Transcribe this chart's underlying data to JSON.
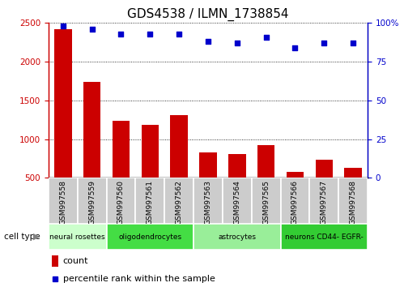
{
  "title": "GDS4538 / ILMN_1738854",
  "samples": [
    "GSM997558",
    "GSM997559",
    "GSM997560",
    "GSM997561",
    "GSM997562",
    "GSM997563",
    "GSM997564",
    "GSM997565",
    "GSM997566",
    "GSM997567",
    "GSM997568"
  ],
  "counts": [
    2420,
    1740,
    1240,
    1190,
    1310,
    830,
    810,
    920,
    580,
    730,
    630
  ],
  "percentile": [
    98,
    96,
    93,
    93,
    93,
    88,
    87,
    91,
    84,
    87,
    87
  ],
  "ylim_left": [
    500,
    2500
  ],
  "ylim_right": [
    0,
    100
  ],
  "yticks_left": [
    500,
    1000,
    1500,
    2000,
    2500
  ],
  "yticks_right": [
    0,
    25,
    50,
    75,
    100
  ],
  "cell_type_groups": [
    {
      "label": "neural rosettes",
      "start": 0,
      "end": 2,
      "color": "#ccffcc"
    },
    {
      "label": "oligodendrocytes",
      "start": 2,
      "end": 5,
      "color": "#44dd44"
    },
    {
      "label": "astrocytes",
      "start": 5,
      "end": 8,
      "color": "#99ee99"
    },
    {
      "label": "neurons CD44- EGFR-",
      "start": 8,
      "end": 11,
      "color": "#33cc33"
    }
  ],
  "bar_color": "#cc0000",
  "dot_color": "#0000cc",
  "bg_color": "#ffffff",
  "sample_box_color": "#cccccc",
  "legend_count_color": "#cc0000",
  "legend_pct_color": "#0000cc",
  "cell_type_label": "cell type",
  "legend_count": "count",
  "legend_pct": "percentile rank within the sample",
  "title_fontsize": 11,
  "tick_fontsize": 7.5,
  "label_fontsize": 6.5,
  "cell_fontsize": 6.5
}
